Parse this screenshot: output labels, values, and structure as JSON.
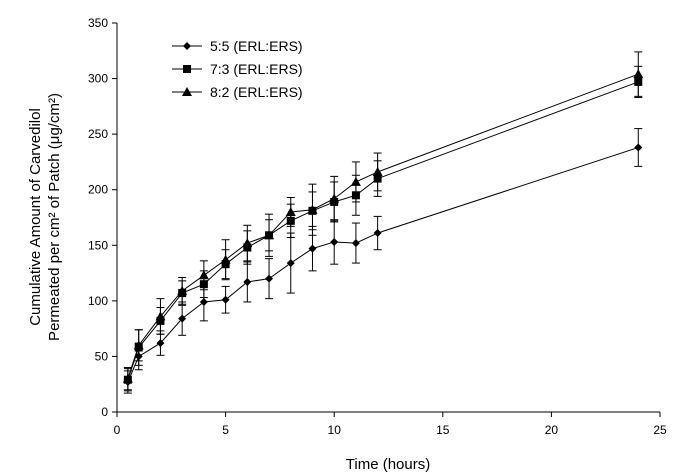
{
  "chart_data": {
    "type": "line",
    "xlabel": "Time (hours)",
    "ylabel": [
      "Cumulative Amount of Carvedilol",
      "Permeated per cm² of Patch (μg/cm²)"
    ],
    "xlim": [
      0,
      25
    ],
    "ylim": [
      0,
      350
    ],
    "xticks": [
      0,
      5,
      10,
      15,
      20,
      25
    ],
    "yticks": [
      0,
      50,
      100,
      150,
      200,
      250,
      300,
      350
    ],
    "grid": false,
    "legend_position": "top-left",
    "x": [
      0.5,
      1,
      2,
      3,
      4,
      5,
      6,
      7,
      8,
      9,
      10,
      11,
      12,
      24
    ],
    "series": [
      {
        "name": "5:5 (ERL:ERS)",
        "marker": "diamond",
        "values": [
          27,
          50,
          62,
          84,
          99,
          101,
          117,
          120,
          134,
          147,
          153,
          152,
          161,
          238
        ],
        "errors": [
          10,
          12,
          11,
          15,
          17,
          12,
          18,
          18,
          27,
          20,
          20,
          18,
          15,
          17
        ]
      },
      {
        "name": "7:3 (ERL:ERS)",
        "marker": "square",
        "values": [
          29,
          58,
          82,
          107,
          115,
          133,
          148,
          159,
          172,
          181,
          189,
          195,
          210,
          297
        ],
        "errors": [
          10,
          16,
          12,
          11,
          12,
          13,
          15,
          14,
          15,
          17,
          18,
          18,
          16,
          14
        ]
      },
      {
        "name": "8:2 (ERL:ERS)",
        "marker": "triangle",
        "values": [
          30,
          60,
          86,
          109,
          123,
          137,
          152,
          159,
          180,
          182,
          192,
          207,
          216,
          304
        ],
        "errors": [
          10,
          14,
          16,
          12,
          13,
          18,
          16,
          19,
          13,
          23,
          20,
          18,
          17,
          20
        ]
      }
    ]
  }
}
